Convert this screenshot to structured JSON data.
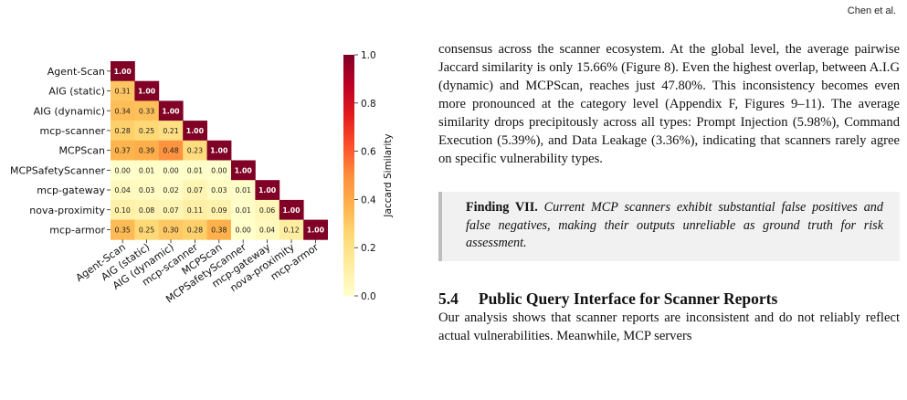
{
  "header": {
    "running_head": "Chen et al."
  },
  "chart_data": {
    "type": "heatmap",
    "title": "",
    "labels": [
      "Agent-Scan",
      "AIG (static)",
      "AIG (dynamic)",
      "mcp-scanner",
      "MCPScan",
      "MCPSafetyScanner",
      "mcp-gateway",
      "nova-proximity",
      "mcp-armor"
    ],
    "values": [
      [
        1.0
      ],
      [
        0.31,
        1.0
      ],
      [
        0.34,
        0.33,
        1.0
      ],
      [
        0.28,
        0.25,
        0.21,
        1.0
      ],
      [
        0.37,
        0.39,
        0.48,
        0.23,
        1.0
      ],
      [
        0.0,
        0.01,
        0.0,
        0.01,
        0.0,
        1.0
      ],
      [
        0.04,
        0.03,
        0.02,
        0.07,
        0.03,
        0.01,
        1.0
      ],
      [
        0.1,
        0.08,
        0.07,
        0.11,
        0.09,
        0.01,
        0.06,
        1.0
      ],
      [
        0.35,
        0.25,
        0.3,
        0.28,
        0.38,
        0.0,
        0.04,
        0.12,
        1.0
      ]
    ],
    "lower_triangle_only": true,
    "colorbar": {
      "label": "Jaccard Similarity",
      "range": [
        0.0,
        1.0
      ],
      "ticks": [
        "0.0",
        "0.2",
        "0.4",
        "0.6",
        "0.8",
        "1.0"
      ],
      "colormap": "YlOrRd"
    }
  },
  "text": {
    "para1": "consensus across the scanner ecosystem. At the global level, the average pairwise Jaccard similarity is only 15.66% (Figure 8). Even the highest overlap, between A.I.G (dynamic) and MCPScan, reaches just 47.80%. This inconsistency becomes even more pronounced at the category level (Appendix F, Figures 9–11). The average similarity drops precipitously across all types: Prompt Injection (5.98%), Command Execution (5.39%), and Data Leakage (3.36%), indicating that scanners rarely agree on specific vulnerability types.",
    "finding_title": "Finding VII.",
    "finding_body": "Current MCP scanners exhibit substantial false positives and false negatives, making their outputs unreliable as ground truth for risk assessment.",
    "section_number": "5.4",
    "section_title": "Public Query Interface for Scanner Reports",
    "para2": "Our analysis shows that scanner reports are inconsistent and do not reliably reflect actual vulnerabilities. Meanwhile, MCP servers"
  }
}
